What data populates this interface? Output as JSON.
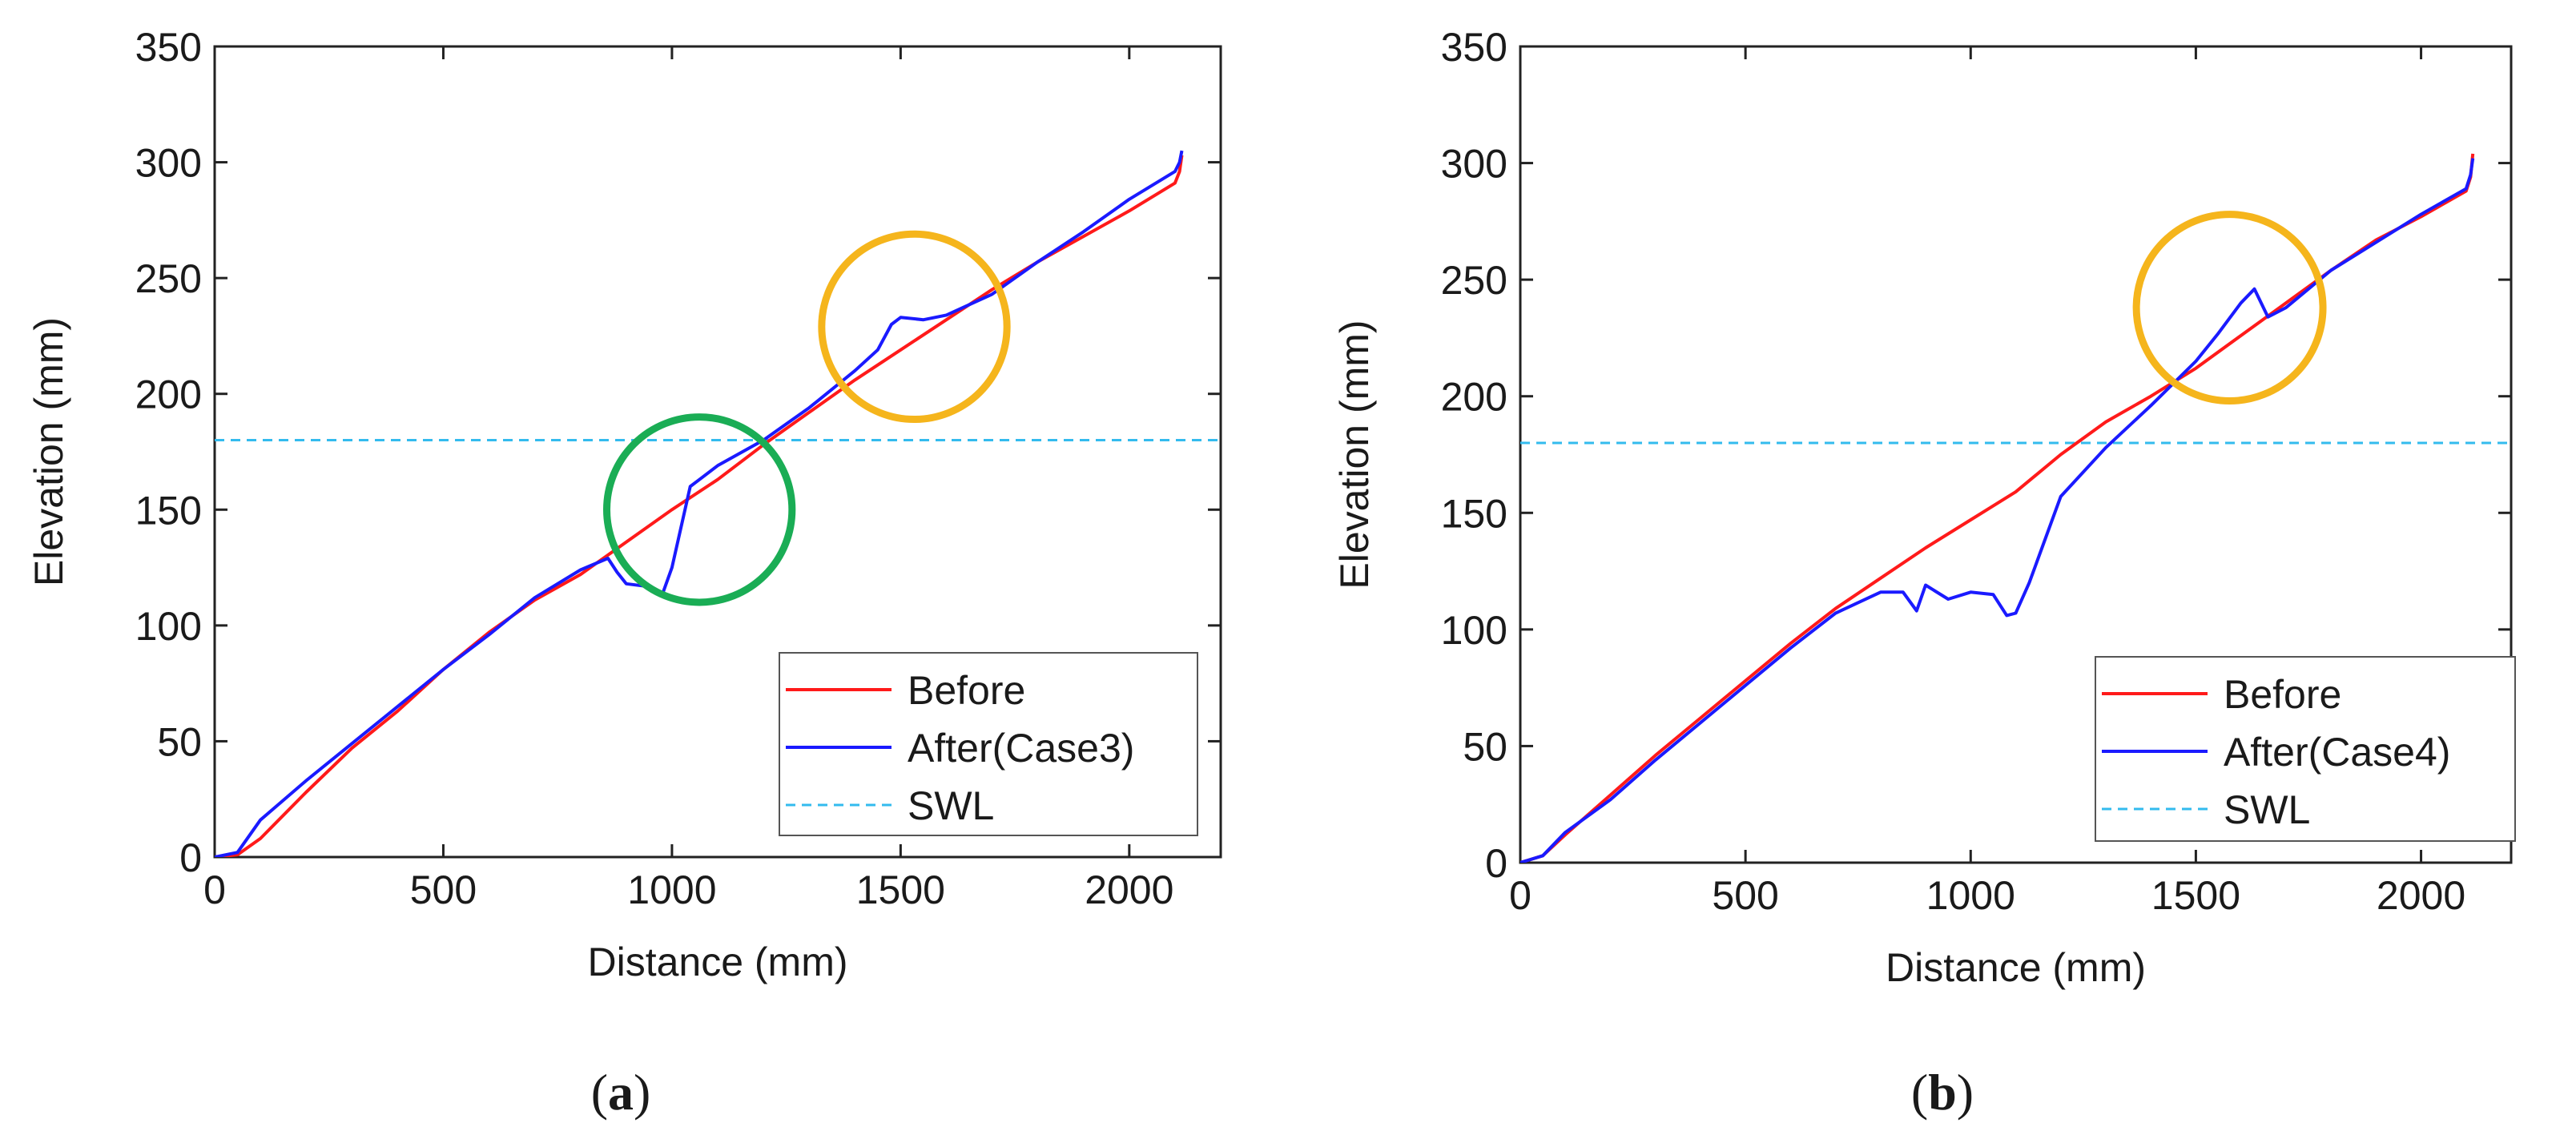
{
  "colors": {
    "before": "#ff1a1a",
    "after": "#1a1aff",
    "swl": "#33bbee",
    "circle_green": "#1aad55",
    "circle_orange": "#f5b51c"
  },
  "chart_data": [
    {
      "type": "line",
      "panel_caption": {
        "open": "(",
        "letter": "a",
        "close": ")"
      },
      "xlabel": "Distance (mm)",
      "ylabel": "Elevation (mm)",
      "xlim": [
        0,
        2200
      ],
      "ylim": [
        0,
        350
      ],
      "xticks": [
        0,
        500,
        1000,
        1500,
        2000
      ],
      "yticks": [
        0,
        50,
        100,
        150,
        200,
        250,
        300,
        350
      ],
      "grid": false,
      "legend_position": "bottom-right",
      "swl": 180,
      "series": [
        {
          "name": "Before",
          "color_key": "before",
          "style": "solid",
          "x": [
            0,
            50,
            100,
            200,
            300,
            400,
            500,
            600,
            700,
            800,
            900,
            1000,
            1100,
            1200,
            1300,
            1400,
            1500,
            1600,
            1700,
            1800,
            1900,
            2000,
            2100,
            2110,
            2115
          ],
          "y": [
            0,
            1,
            8,
            28,
            47,
            63,
            81,
            97,
            111,
            122,
            136,
            150,
            163,
            178,
            192,
            206,
            219,
            232,
            245,
            257,
            268,
            279,
            291,
            296,
            303
          ]
        },
        {
          "name": "After(Case3)",
          "color_key": "after",
          "style": "solid",
          "x": [
            0,
            50,
            100,
            200,
            300,
            400,
            500,
            600,
            700,
            800,
            860,
            880,
            900,
            940,
            980,
            1000,
            1040,
            1060,
            1100,
            1200,
            1300,
            1400,
            1450,
            1480,
            1500,
            1550,
            1600,
            1700,
            1800,
            1900,
            2000,
            2100,
            2110,
            2115
          ],
          "y": [
            0,
            2,
            16,
            33,
            49,
            65,
            81,
            96,
            112,
            124,
            129,
            123,
            118,
            117,
            114,
            125,
            160,
            163,
            169,
            180,
            194,
            210,
            219,
            230,
            233,
            232,
            234,
            243,
            257,
            270,
            284,
            296,
            300,
            305
          ]
        }
      ],
      "legend": [
        {
          "label": "Before",
          "color_key": "before",
          "dashed": false
        },
        {
          "label": "After(Case3)",
          "color_key": "after",
          "dashed": false
        },
        {
          "label": "SWL",
          "color_key": "swl",
          "dashed": true
        }
      ],
      "annotations": [
        {
          "shape": "circle",
          "color_key": "circle_green",
          "cx": 1060,
          "cy": 150
        },
        {
          "shape": "circle",
          "color_key": "circle_orange",
          "cx": 1530,
          "cy": 229
        }
      ]
    },
    {
      "type": "line",
      "panel_caption": {
        "open": "(",
        "letter": "b",
        "close": ")"
      },
      "xlabel": "Distance (mm)",
      "ylabel": "Elevation (mm)",
      "xlim": [
        0,
        2200
      ],
      "ylim": [
        0,
        350
      ],
      "xticks": [
        0,
        500,
        1000,
        1500,
        2000
      ],
      "yticks": [
        0,
        50,
        100,
        150,
        200,
        250,
        300,
        350
      ],
      "grid": false,
      "legend_position": "bottom-right",
      "swl": 180,
      "series": [
        {
          "name": "Before",
          "color_key": "before",
          "style": "solid",
          "x": [
            0,
            50,
            100,
            200,
            300,
            400,
            500,
            600,
            700,
            800,
            900,
            1000,
            1100,
            1200,
            1300,
            1400,
            1500,
            1600,
            1700,
            1800,
            1900,
            2000,
            2100,
            2110,
            2115
          ],
          "y": [
            0,
            3,
            12,
            29,
            46,
            62,
            78,
            94,
            109,
            122,
            135,
            147,
            159,
            175,
            189,
            200,
            212,
            226,
            240,
            254,
            267,
            277,
            288,
            294,
            304
          ]
        },
        {
          "name": "After(Case4)",
          "color_key": "after",
          "style": "solid",
          "x": [
            0,
            50,
            100,
            200,
            300,
            400,
            500,
            600,
            700,
            800,
            850,
            880,
            900,
            950,
            1000,
            1050,
            1080,
            1100,
            1130,
            1200,
            1300,
            1400,
            1500,
            1550,
            1600,
            1630,
            1660,
            1700,
            1800,
            1900,
            2000,
            2100,
            2110,
            2115
          ],
          "y": [
            0,
            3,
            13,
            27,
            44,
            60,
            76,
            92,
            107,
            116,
            116,
            108,
            119,
            113,
            116,
            115,
            106,
            107,
            120,
            157,
            178,
            196,
            215,
            227,
            240,
            246,
            234,
            238,
            254,
            266,
            278,
            289,
            295,
            302
          ]
        }
      ],
      "legend": [
        {
          "label": "Before",
          "color_key": "before",
          "dashed": false
        },
        {
          "label": "After(Case4)",
          "color_key": "after",
          "dashed": false
        },
        {
          "label": "SWL",
          "color_key": "swl",
          "dashed": true
        }
      ],
      "annotations": [
        {
          "shape": "circle",
          "color_key": "circle_orange",
          "cx": 1575,
          "cy": 238
        }
      ]
    }
  ]
}
